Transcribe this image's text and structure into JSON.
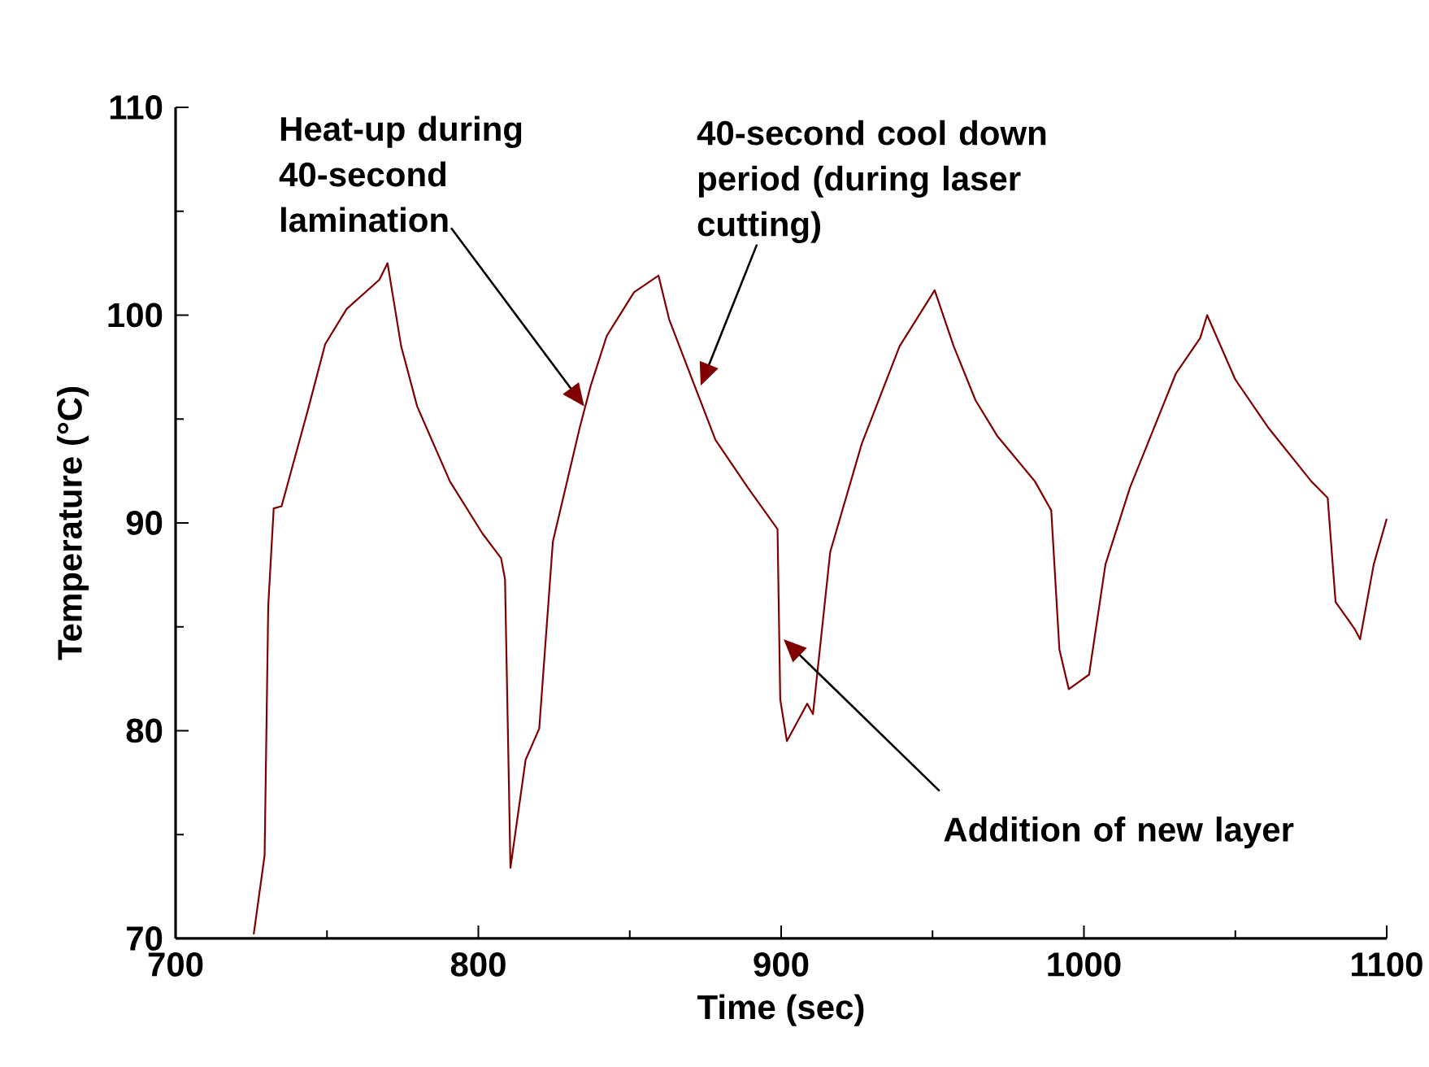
{
  "chart_data": {
    "type": "line",
    "xlabel": "Time (sec)",
    "ylabel": "Temperature (°C)",
    "xlim": [
      700,
      1100
    ],
    "ylim": [
      70,
      110
    ],
    "xticks": [
      700,
      {
        "value": 750,
        "label": null
      },
      800,
      {
        "value": 850,
        "label": null
      },
      900,
      {
        "value": 950,
        "label": null
      },
      1000,
      {
        "value": 1050,
        "label": null
      },
      1100
    ],
    "yticks": [
      70,
      {
        "value": 75,
        "label": null
      },
      80,
      {
        "value": 85,
        "label": null
      },
      90,
      {
        "value": 95,
        "label": null
      },
      100,
      {
        "value": 105,
        "label": null
      },
      110
    ],
    "grid": false,
    "marker": "none",
    "line_style": "solid",
    "annotations": [
      "Heat-up during 40-second lamination",
      "40-second cool down period (during laser cutting)",
      "Addition of new layer"
    ],
    "series": [
      {
        "color": "#800000",
        "x": [
          725.8,
          729.4,
          730.6,
          732.4,
          735,
          744,
          749.4,
          756.5,
          767.3,
          770,
          774.5,
          779.8,
          790.6,
          801.3,
          807.5,
          808.8,
          810.6,
          815.6,
          820.1,
          824.6,
          833.5,
          837.1,
          842.4,
          851.4,
          859.5,
          863,
          869.3,
          878.3,
          889,
          898.8,
          899.7,
          901.9,
          908.6,
          910.5,
          916.2,
          926.6,
          939.1,
          950.7,
          957,
          964.2,
          971.3,
          983.8,
          989.2,
          991.9,
          995,
          1001.7,
          1007.1,
          1015.2,
          1030.4,
          1038.4,
          1040.7,
          1050,
          1060.8,
          1075.1,
          1080.5,
          1083.1,
          1089.4,
          1091.2,
          1095.7,
          1100
        ],
        "values": [
          70.2,
          74.0,
          86.0,
          90.7,
          90.8,
          95.6,
          98.6,
          100.3,
          101.7,
          102.5,
          98.5,
          95.6,
          92.0,
          89.5,
          88.3,
          87.3,
          73.4,
          78.6,
          80.1,
          89.1,
          94.6,
          96.6,
          99.0,
          101.1,
          101.9,
          99.8,
          97.4,
          94.0,
          91.7,
          89.7,
          81.5,
          79.5,
          81.3,
          80.8,
          88.6,
          93.8,
          98.5,
          101.2,
          98.5,
          95.9,
          94.2,
          92.0,
          90.6,
          83.9,
          82.0,
          82.7,
          88.0,
          91.7,
          97.2,
          98.9,
          100.0,
          96.9,
          94.6,
          92.0,
          91.2,
          86.2,
          84.9,
          84.4,
          88.0,
          90.2
        ]
      }
    ]
  }
}
